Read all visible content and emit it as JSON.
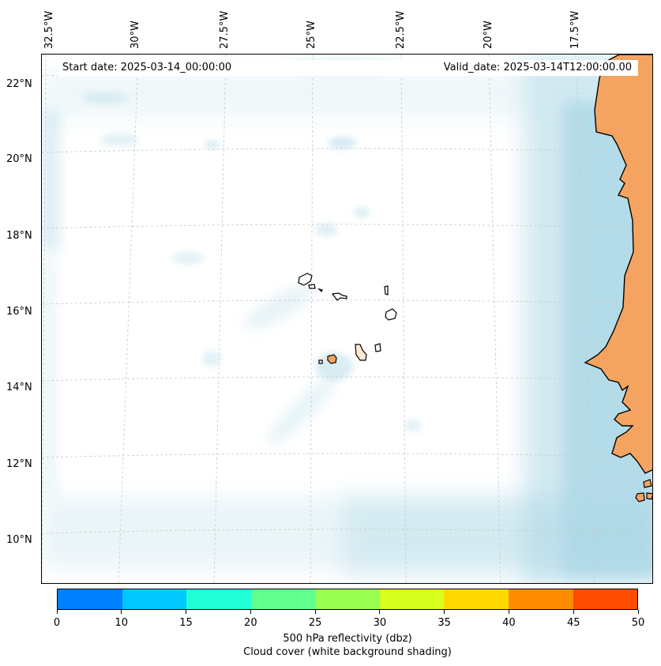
{
  "header": {
    "start_date": "Start date: 2025-03-14_00:00:00",
    "valid_date": "Valid_date: 2025-03-14T12:00:00.00"
  },
  "lon_labels": [
    "32.5°W",
    "30°W",
    "27.5°W",
    "25°W",
    "22.5°W",
    "20°W",
    "17.5°W"
  ],
  "lat_labels": [
    "22°N",
    "20°N",
    "18°N",
    "16°N",
    "14°N",
    "12°N",
    "10°N"
  ],
  "colorbar": {
    "ticks": [
      "0",
      "10",
      "15",
      "20",
      "25",
      "30",
      "35",
      "40",
      "45",
      "50"
    ],
    "colors": [
      "#0080ff",
      "#00c8ff",
      "#20ffd8",
      "#60ff90",
      "#98ff50",
      "#d8ff20",
      "#ffd800",
      "#ff8c00",
      "#ff4c00"
    ],
    "label_line1": "500 hPa reflectivity (dbz)",
    "label_line2": "Cloud cover (white background shading)"
  },
  "colors": {
    "land": "#f4a460",
    "cloud": "#add8e6",
    "coast": "#000000",
    "grid": "#c8c8c8"
  }
}
